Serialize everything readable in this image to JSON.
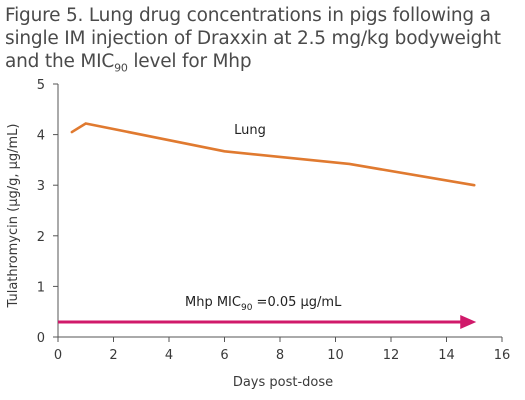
{
  "chart_data": {
    "type": "line",
    "title_lines": [
      "Figure 5. Lung drug concentrations in pigs following a",
      "single IM injection of Draxxin at 2.5 mg/kg bodyweight",
      {
        "pre": "and the MIC",
        "sub": "90",
        "post": " level for Mhp"
      }
    ],
    "xlabel": "Days post-dose",
    "ylabel": "Tulathromycin (µg/g, µg/mL)",
    "xlim": [
      0,
      16
    ],
    "ylim": [
      0,
      5
    ],
    "xticks": [
      0,
      2,
      4,
      6,
      8,
      10,
      12,
      14,
      16
    ],
    "yticks": [
      0,
      1,
      2,
      3,
      4,
      5
    ],
    "grid": false,
    "series": [
      {
        "name": "Lung",
        "color": "#e07a30",
        "x": [
          0.5,
          1,
          6,
          10.5,
          15
        ],
        "y": [
          4.05,
          4.22,
          3.67,
          3.42,
          3.0
        ]
      }
    ],
    "annotations": [
      {
        "label_pre": "Mhp MIC",
        "label_sub": "90",
        "label_post": " =0.05 µg/mL",
        "value": 0.05,
        "x_start": 0,
        "x_end": 15,
        "color": "#d0196a"
      }
    ]
  }
}
